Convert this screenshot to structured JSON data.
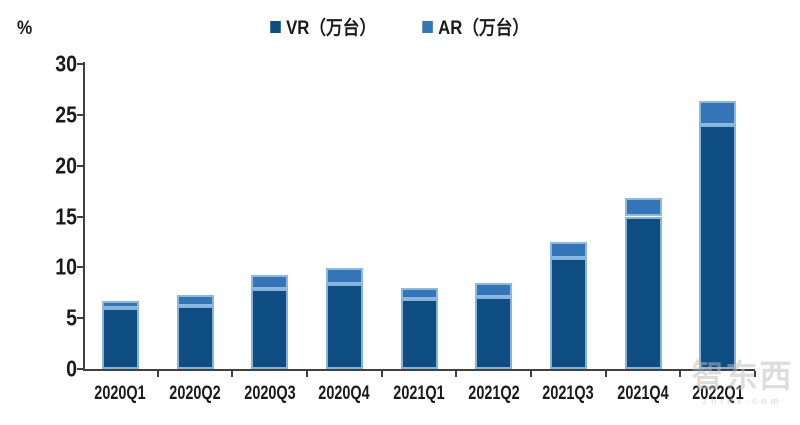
{
  "chart_data": {
    "type": "bar",
    "stacked": true,
    "title": "",
    "ylabel": "%",
    "xlabel": "",
    "categories": [
      "2020Q1",
      "2020Q2",
      "2020Q3",
      "2020Q4",
      "2021Q1",
      "2021Q2",
      "2021Q3",
      "2021Q4",
      "2022Q1"
    ],
    "series": [
      {
        "name": "VR（万台）",
        "color": "#0e4d82",
        "values": [
          6.0,
          6.2,
          7.9,
          8.4,
          6.9,
          7.1,
          10.9,
          15.0,
          24.0
        ]
      },
      {
        "name": "AR（万台）",
        "color": "#3375b7",
        "values": [
          0.7,
          1.1,
          1.3,
          1.5,
          1.1,
          1.4,
          1.6,
          1.8,
          2.4
        ]
      }
    ],
    "totals": [
      6.7,
      7.3,
      9.2,
      9.9,
      8.0,
      8.5,
      12.5,
      16.8,
      26.4
    ],
    "ylim": [
      0,
      30
    ],
    "yticks": [
      0,
      5,
      10,
      15,
      20,
      25,
      30
    ],
    "grid": false,
    "legend_position": "top"
  },
  "colors": {
    "axis": "#404040",
    "text": "#1a1a1a",
    "bar_border": "#9ec5e8",
    "background": "#ffffff"
  },
  "watermark": {
    "logo": "智东西",
    "domain": "zhidx.com"
  }
}
